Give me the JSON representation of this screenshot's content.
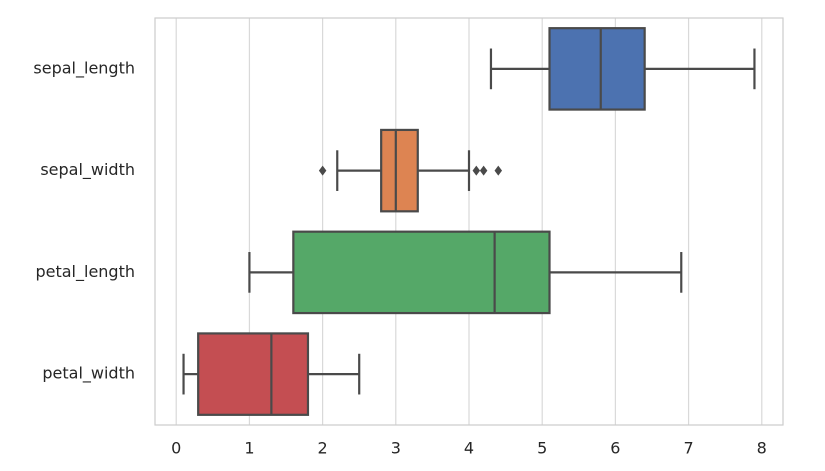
{
  "chart_data": {
    "type": "box",
    "orientation": "horizontal",
    "categories": [
      "sepal_length",
      "sepal_width",
      "petal_length",
      "petal_width"
    ],
    "colors": [
      "#4c72b0",
      "#dd8452",
      "#55a868",
      "#c44e52"
    ],
    "boxes": [
      {
        "whislo": 4.3,
        "q1": 5.1,
        "med": 5.8,
        "q3": 6.4,
        "whishi": 7.9,
        "fliers": []
      },
      {
        "whislo": 2.2,
        "q1": 2.8,
        "med": 3.0,
        "q3": 3.3,
        "whishi": 4.0,
        "fliers": [
          2.0,
          4.1,
          4.2,
          4.4
        ]
      },
      {
        "whislo": 1.0,
        "q1": 1.6,
        "med": 4.35,
        "q3": 5.1,
        "whishi": 6.9,
        "fliers": []
      },
      {
        "whislo": 0.1,
        "q1": 0.3,
        "med": 1.3,
        "q3": 1.8,
        "whishi": 2.5,
        "fliers": []
      }
    ],
    "xlim": [
      -0.29,
      8.29
    ],
    "xticks": [
      0,
      1,
      2,
      3,
      4,
      5,
      6,
      7,
      8
    ],
    "grid": true
  }
}
